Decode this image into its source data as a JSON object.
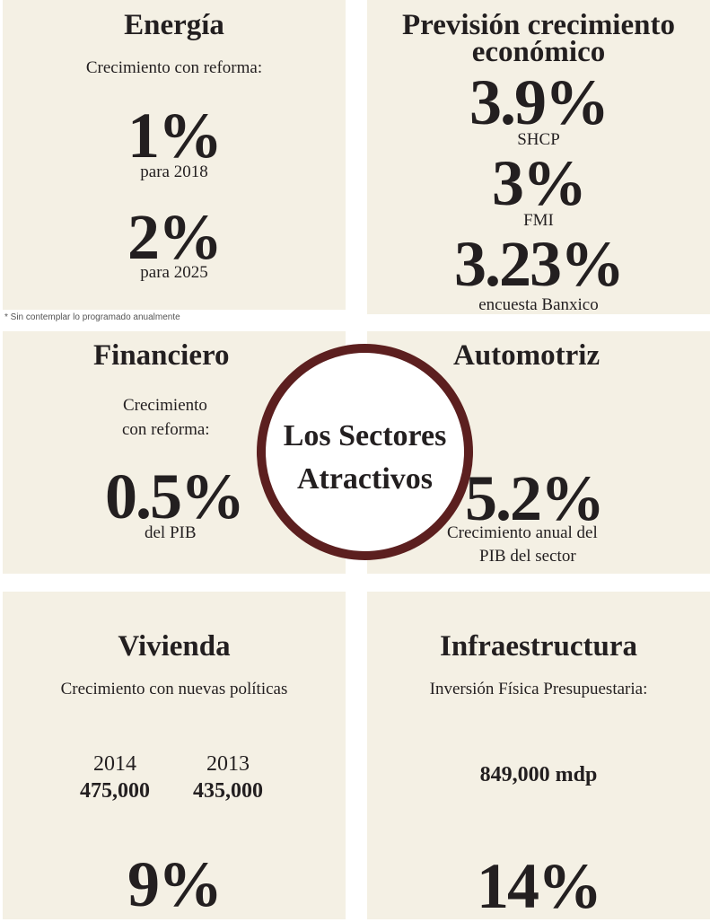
{
  "energia": {
    "title": "Energía",
    "subtitle": "Crecimiento con reforma:",
    "stat1_value": "1%",
    "stat1_caption": "para 2018",
    "stat2_value": "2%",
    "stat2_caption": "para 2025",
    "footnote": "* Sin contemplar lo programado anualmente"
  },
  "prevision": {
    "title_line1": "Previsión crecimiento",
    "title_line2": "económico",
    "items": [
      {
        "value": "3.9%",
        "source": "SHCP"
      },
      {
        "value": "3%",
        "source": "FMI"
      },
      {
        "value": "3.23%",
        "source": "encuesta Banxico"
      }
    ]
  },
  "financiero": {
    "title": "Financiero",
    "subtitle_line1": "Crecimiento",
    "subtitle_line2": "con reforma:",
    "value": "0.5%",
    "caption": "del PIB"
  },
  "automotriz": {
    "title": "Automotriz",
    "value": "5.2%",
    "caption_line1": "Crecimiento anual del",
    "caption_line2": "PIB del sector"
  },
  "center": {
    "line1": "Los Sectores",
    "line2": "Atractivos"
  },
  "vivienda": {
    "title": "Vivienda",
    "subtitle": "Crecimiento con nuevas políticas",
    "years": [
      {
        "year": "2014",
        "value": "475,000"
      },
      {
        "year": "2013",
        "value": "435,000"
      }
    ],
    "big_value": "9%"
  },
  "infraestructura": {
    "title": "Infraestructura",
    "subtitle": "Inversión Física Presupuestaria:",
    "amount": "849,000 mdp",
    "big_value": "14%"
  }
}
